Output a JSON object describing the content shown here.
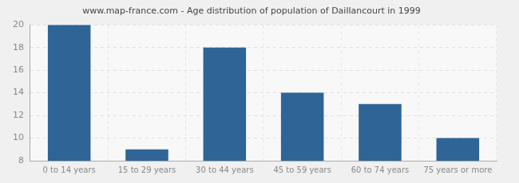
{
  "chart_data": {
    "type": "bar",
    "title": "www.map-france.com - Age distribution of population of Daillancourt in 1999",
    "categories": [
      "0 to 14 years",
      "15 to 29 years",
      "30 to 44 years",
      "45 to 59 years",
      "60 to 74 years",
      "75 years or more"
    ],
    "values": [
      20,
      9,
      18,
      14,
      13,
      10
    ],
    "color": "#2f6496",
    "ylim": [
      8,
      20
    ],
    "yticks": [
      8,
      10,
      12,
      14,
      16,
      18,
      20
    ],
    "grid": true
  }
}
